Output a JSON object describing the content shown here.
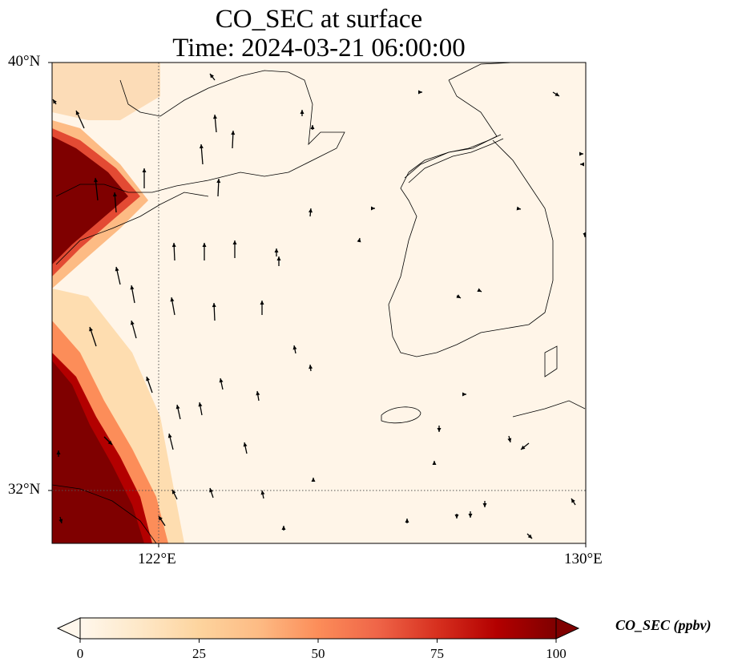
{
  "title": {
    "line1": "CO_SEC at surface",
    "line2": "Time: 2024-03-21 06:00:00"
  },
  "axes": {
    "lat_ticks": [
      "40°N",
      "32°N"
    ],
    "lon_ticks": [
      "122°E",
      "130°E"
    ],
    "lat_range": [
      31.0,
      40.0
    ],
    "lon_range": [
      120.0,
      130.0
    ],
    "gridlines": "dotted at 122°E and 32°N"
  },
  "colorbar": {
    "label": "CO_SEC (ppbv)",
    "ticks": [
      "0",
      "25",
      "50",
      "75",
      "100"
    ],
    "range": [
      0,
      100
    ],
    "extend": "both",
    "colormap": [
      "#fff7ec",
      "#fee8c8",
      "#fdd49e",
      "#fdbb84",
      "#fc8d59",
      "#ef6548",
      "#d7301f",
      "#b30000",
      "#7f0000"
    ]
  },
  "field": {
    "description_units": "ppbv",
    "high_region": "western coast (China), values at or above 100 near the coastline, decaying to near 0 eastward",
    "background_color": "#fff5e8",
    "high_color": "#7f0000"
  }
}
